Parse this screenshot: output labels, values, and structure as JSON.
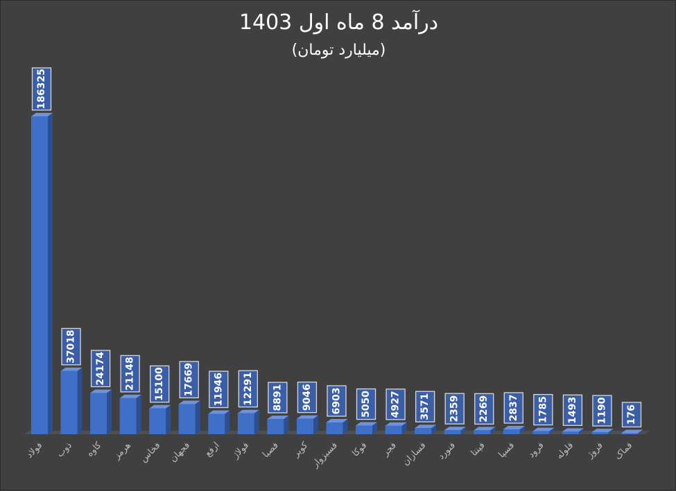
{
  "chart_data": {
    "type": "bar",
    "title": "درآمد 8 ماه اول 1403",
    "subtitle": "(میلیارد تومان)",
    "categories": [
      "فولاد",
      "ذوب",
      "کاوه",
      "هرمز",
      "فخاس",
      "فجهان",
      "ارفع",
      "فولاژ",
      "فصبا",
      "کویر",
      "فسبزوار",
      "فوکا",
      "فجر",
      "فسازان",
      "فنورد",
      "فپنتا",
      "فسپا",
      "فرود",
      "فلوله",
      "فروژ",
      "فماک"
    ],
    "values": [
      186325,
      37018,
      24174,
      21148,
      15100,
      17669,
      11946,
      12291,
      8891,
      9046,
      6903,
      5050,
      4927,
      3571,
      2359,
      2269,
      2837,
      1785,
      1493,
      1190,
      176
    ],
    "ylim": [
      0,
      186325
    ],
    "grid": false,
    "legend": "none",
    "colors": {
      "background": "#404040",
      "bar_front": "#3f6fc6",
      "bar_side": "#2c4f91",
      "bar_top": "#6f93d9",
      "label_box_fill": "#3a5ea8",
      "label_box_border": "#d9d9d9",
      "text": "#ffffff",
      "axis_text": "#bfbfbf",
      "floor": "#5a5a5a"
    }
  }
}
